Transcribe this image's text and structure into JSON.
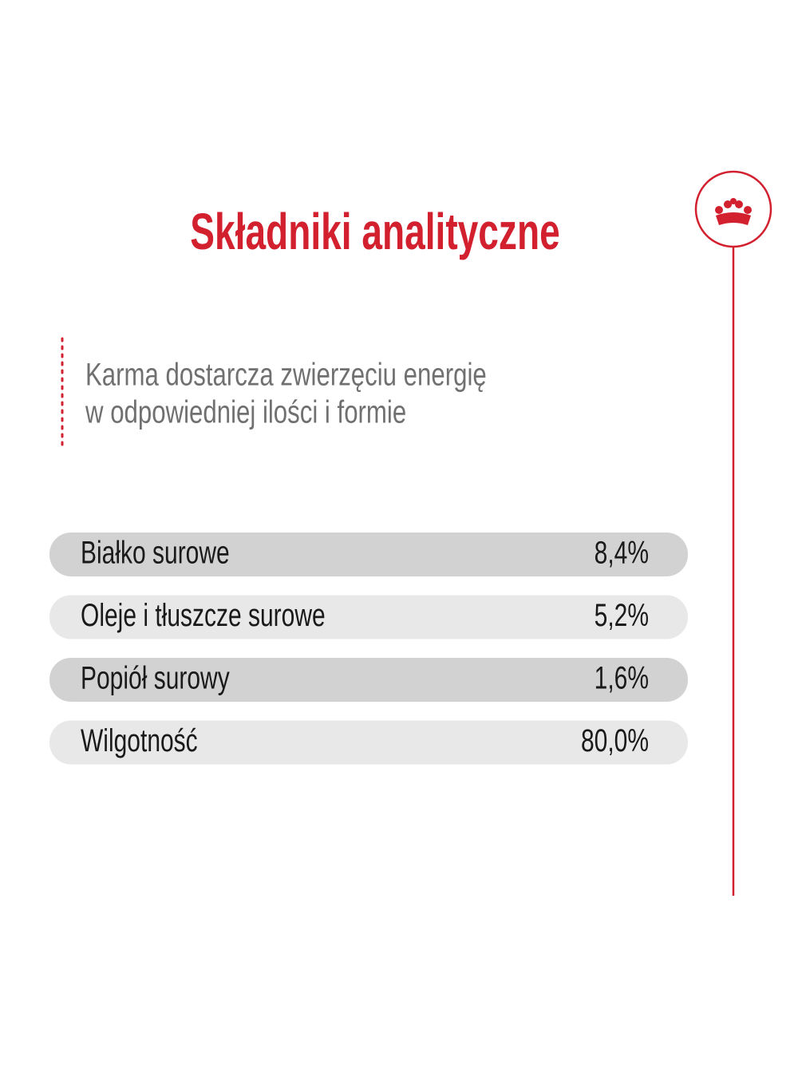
{
  "header": {
    "title": "Składniki analityczne"
  },
  "subtitle": {
    "lines": [
      "Karma dostarcza zwierzęciu energię",
      "w odpowiedniej ilości i formie"
    ]
  },
  "table": {
    "rows": [
      [
        "Białko surowe",
        "8,4%"
      ],
      [
        "Oleje i tłuszcze surowe",
        "5,2%"
      ],
      [
        "Popiół surowy",
        "1,6%"
      ],
      [
        "Wilgotność",
        "80,0%"
      ]
    ]
  }
}
